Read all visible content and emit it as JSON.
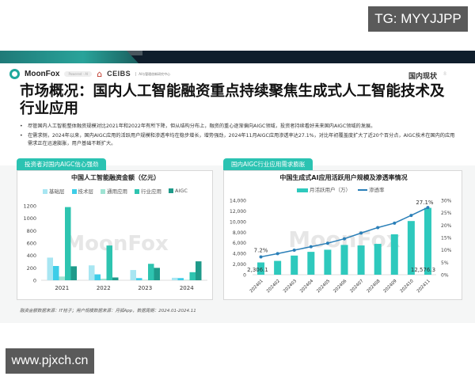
{
  "watermarks": {
    "top_right": "TG: MYYJJPP",
    "bottom_left": "www.pjxch.cn"
  },
  "header": {
    "logo_moonfox": "MoonFox",
    "logo_pill": "Powered · AI",
    "logo_ceibs": "CEIBS",
    "logo_ceibs_sub": "AI与管理创新研究中心",
    "section": "国内现状",
    "page_number": "8"
  },
  "title": "市场概况：国内人工智能融资重点持续聚焦生成式人工智能技术及行业应用",
  "bullets": [
    "尽管国内人工智能整体融资规模对比2021年和2022年有所下降，但从结构分布上，融资的重心逐渐偏向AIGC领域，投资者持续看好未来国内AIGC领域的发展。",
    "在需求侧，2024年以来，国内AIGC应用的活跃用户规模和渗透率均在稳步增长，增势强劲，2024年11月AIGC应用渗透率达27.1%，对比年初覆盖度扩大了近20个百分点，AIGC技术在国内的应用需求正在迅速膨胀，用户基础不断扩大。"
  ],
  "panels": {
    "left_tag": "投资者对国内AIGC信心强劲",
    "right_tag": "国内AIGC行业应用需求膨胀"
  },
  "footnote": "融资金额数据来源：IT桔子；用户规模数据来源：月狐App，数据周期：2024.01-2024.11",
  "chart_watermark": "MoonFox",
  "chart_data": [
    {
      "type": "bar",
      "title": "中国人工智能融资金额（亿元）",
      "xlabel": "",
      "ylabel": "",
      "categories": [
        "2021",
        "2022",
        "2023",
        "2024"
      ],
      "series": [
        {
          "name": "基础层",
          "color": "#a8e6f2",
          "values": [
            365,
            240,
            165,
            40
          ]
        },
        {
          "name": "技术层",
          "color": "#3dcde8",
          "values": [
            230,
            95,
            35,
            35
          ]
        },
        {
          "name": "通用应用",
          "color": "#9fe3d3",
          "values": [
            60,
            25,
            8,
            8
          ]
        },
        {
          "name": "行业应用",
          "color": "#2ec4b0",
          "values": [
            1180,
            560,
            265,
            130
          ]
        },
        {
          "name": "AIGC",
          "color": "#1f9a8a",
          "values": [
            225,
            45,
            200,
            305
          ]
        }
      ],
      "ylim": [
        0,
        1200
      ],
      "yticks": [
        0,
        200,
        400,
        600,
        800,
        1000,
        1200
      ],
      "grid": false,
      "legend_position": "top"
    },
    {
      "type": "bar+line",
      "title": "中国生成式AI应用活跃用户规模及渗透率情况",
      "categories": [
        "202401",
        "202402",
        "202403",
        "202404",
        "202405",
        "202406",
        "202407",
        "202408",
        "202409",
        "202410",
        "202411"
      ],
      "series": [
        {
          "name": "月活跃用户（万）",
          "type": "bar",
          "axis": "left",
          "color": "#2ec9bd",
          "values": [
            2306.1,
            2600,
            3600,
            4300,
            4700,
            5600,
            5500,
            5800,
            7600,
            10100,
            12576.3
          ]
        },
        {
          "name": "渗透率",
          "type": "line",
          "axis": "right",
          "color": "#2a7fb8",
          "unit": "%",
          "values": [
            7.2,
            8.5,
            9.9,
            11.3,
            12.7,
            14.5,
            16.8,
            19.0,
            20.8,
            23.9,
            27.1
          ]
        }
      ],
      "ylim_left": [
        0,
        14000
      ],
      "yticks_left": [
        "0",
        "2,000",
        "4,000",
        "6,000",
        "8,000",
        "10,000",
        "12,000",
        "14,000"
      ],
      "ylim_right": [
        0,
        30
      ],
      "yticks_right": [
        "0%",
        "5%",
        "10%",
        "15%",
        "20%",
        "25%",
        "30%"
      ],
      "annotations": [
        "7.2%",
        "27.1%",
        "2,306.1",
        "12,576.3"
      ],
      "legend_position": "top"
    }
  ]
}
